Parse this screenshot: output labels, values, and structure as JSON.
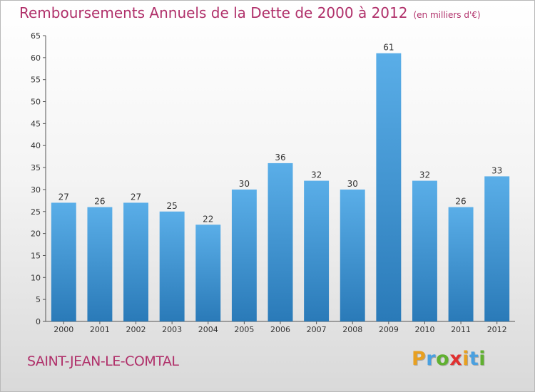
{
  "chart_data": {
    "type": "bar",
    "title": "Remboursements Annuels de la Dette de 2000 à 2012",
    "subtitle": "(en milliers d'€)",
    "categories": [
      "2000",
      "2001",
      "2002",
      "2003",
      "2004",
      "2005",
      "2006",
      "2007",
      "2008",
      "2009",
      "2010",
      "2011",
      "2012"
    ],
    "values": [
      27,
      26,
      27,
      25,
      22,
      30,
      36,
      32,
      30,
      61,
      32,
      26,
      33
    ],
    "ylim": [
      0,
      65
    ],
    "yticks": [
      0,
      5,
      10,
      15,
      20,
      25,
      30,
      35,
      40,
      45,
      50,
      55,
      60,
      65
    ],
    "xlabel": "",
    "ylabel": "",
    "grid": false,
    "bar_color_top": "#5aaee8",
    "bar_color_bottom": "#2a7ab8"
  },
  "commune": "SAINT-JEAN-LE-COMTAL",
  "logo": {
    "letters": [
      "P",
      "r",
      "o",
      "x",
      "i",
      "t",
      "i"
    ],
    "colors": [
      "#e8a020",
      "#4aa0e0",
      "#60b030",
      "#e03030",
      "#e8a020",
      "#4aa0e0",
      "#60b030"
    ]
  },
  "colors": {
    "accent": "#b0306a"
  }
}
